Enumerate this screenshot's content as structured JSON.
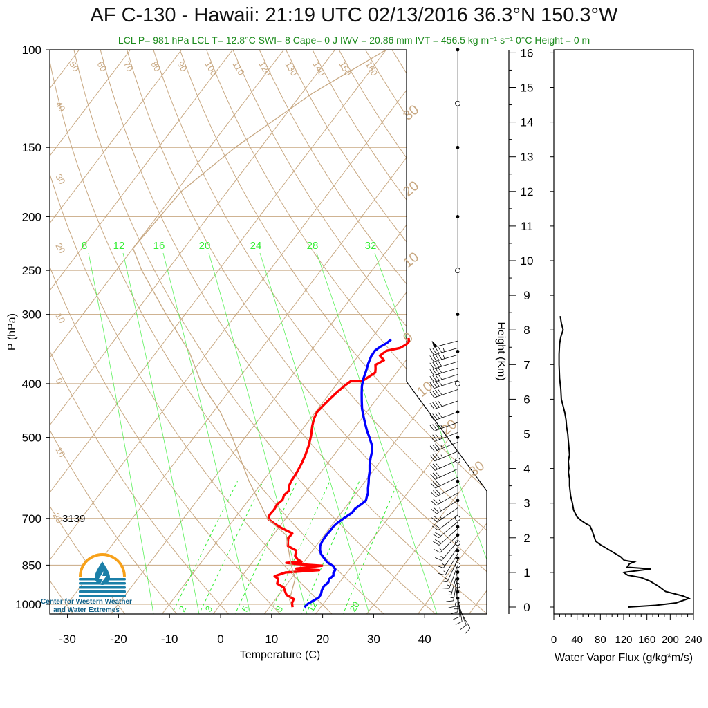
{
  "header": {
    "title": "AF C-130 - Hawaii: 21:19 UTC 02/13/2016  36.3°N 150.3°W",
    "subtitle": "LCL P= 981 hPa  LCL T= 12.8°C  SWI= 8  Cape= 0 J  IWV = 20.86 mm  IVT = 456.5 kg m⁻¹ s⁻¹  0°C Height = 0 m"
  },
  "logo": {
    "caption_line1": "Center for Western Weather",
    "caption_line2": "and Water Extremes"
  },
  "colors": {
    "temperature": "#ff0000",
    "dewpoint": "#0000ff",
    "isotherm": "#c8a882",
    "mixing_ratio": "#33ee33",
    "logo_orange": "#f7a11a",
    "logo_blue": "#1b7fa8"
  },
  "chart_data": [
    {
      "type": "line",
      "chart_kind": "skew-T log-P sounding",
      "xlabel": "Temperature (C)",
      "ylabel": "P (hPa)",
      "xlim": [
        -35,
        52
      ],
      "ylim": [
        1050,
        100
      ],
      "y_scale": "log",
      "x_ticks": [
        -30,
        -20,
        -10,
        0,
        10,
        20,
        30,
        40
      ],
      "y_ticks": [
        100,
        150,
        200,
        250,
        300,
        400,
        500,
        700,
        850,
        1000
      ],
      "annotation": "3139",
      "mixing_ratio_top_labels": [
        "8",
        "12",
        "16",
        "20",
        "24",
        "28",
        "32"
      ],
      "mixing_ratio_bottom_labels": [
        "2",
        "3",
        "5",
        "8",
        "12",
        "20"
      ],
      "isotherm_edge_labels": [
        "30",
        "20",
        "10",
        "0",
        "10",
        "20",
        "30"
      ],
      "dry_adiabat_labels": [
        "50",
        "60",
        "70",
        "80",
        "90",
        "100",
        "110",
        "120",
        "130",
        "140",
        "150",
        "160",
        "40",
        "30",
        "20",
        "10",
        "0",
        "10",
        "20"
      ],
      "series": [
        {
          "name": "Temperature",
          "points": [
            [
              14.5,
              1012
            ],
            [
              13.8,
              995
            ],
            [
              13.5,
              978
            ],
            [
              11.5,
              962
            ],
            [
              10.7,
              948
            ],
            [
              9.8,
              932
            ],
            [
              8.0,
              918
            ],
            [
              7.5,
              900
            ],
            [
              6.4,
              890
            ],
            [
              8.0,
              876
            ],
            [
              14.2,
              868
            ],
            [
              9.5,
              862
            ],
            [
              14.1,
              852
            ],
            [
              9.0,
              846
            ],
            [
              6.7,
              842
            ],
            [
              9.5,
              838
            ],
            [
              8.4,
              830
            ],
            [
              7.4,
              818
            ],
            [
              6.8,
              800
            ],
            [
              4.5,
              785
            ],
            [
              3.9,
              772
            ],
            [
              3.4,
              760
            ],
            [
              3.5,
              745
            ],
            [
              0.5,
              728
            ],
            [
              -1.5,
              715
            ],
            [
              -3.3,
              702
            ],
            [
              -3.7,
              690
            ],
            [
              -3.6,
              675
            ],
            [
              -3.8,
              660
            ],
            [
              -3.4,
              648
            ],
            [
              -3.8,
              636
            ],
            [
              -3.5,
              624
            ],
            [
              -4.2,
              612
            ],
            [
              -4.5,
              598
            ],
            [
              -4.6,
              585
            ],
            [
              -4.8,
              572
            ],
            [
              -5.1,
              556
            ],
            [
              -5.6,
              538
            ],
            [
              -6.4,
              516
            ],
            [
              -7.4,
              496
            ],
            [
              -8.5,
              478
            ],
            [
              -9.3,
              463
            ],
            [
              -9.7,
              450
            ],
            [
              -9.5,
              440
            ],
            [
              -9.2,
              428
            ],
            [
              -8.8,
              416
            ],
            [
              -8.2,
              403
            ],
            [
              -7.7,
              396
            ],
            [
              -5.5,
              396
            ],
            [
              -4.2,
              382
            ],
            [
              -4.7,
              376
            ],
            [
              -5.3,
              370
            ],
            [
              -4.3,
              363
            ],
            [
              -5.8,
              356
            ],
            [
              -5.2,
              349
            ],
            [
              -3.0,
              345
            ],
            [
              -2.3,
              340
            ],
            [
              -2.2,
              336
            ],
            [
              -2.8,
              331
            ]
          ]
        },
        {
          "name": "Dewpoint",
          "points": [
            [
              16.8,
              1012
            ],
            [
              17.0,
              998
            ],
            [
              17.6,
              985
            ],
            [
              18.2,
              972
            ],
            [
              18.1,
              958
            ],
            [
              17.7,
              943
            ],
            [
              17.5,
              928
            ],
            [
              17.8,
              913
            ],
            [
              17.5,
              900
            ],
            [
              17.8,
              888
            ],
            [
              17.4,
              878
            ],
            [
              17.3,
              866
            ],
            [
              16.3,
              853
            ],
            [
              14.6,
              840
            ],
            [
              13.6,
              828
            ],
            [
              12.2,
              812
            ],
            [
              11.4,
              799
            ],
            [
              10.8,
              785
            ],
            [
              10.5,
              770
            ],
            [
              10.4,
              753
            ],
            [
              10.5,
              738
            ],
            [
              10.5,
              724
            ],
            [
              10.8,
              712
            ],
            [
              11.4,
              698
            ],
            [
              12.1,
              684
            ],
            [
              12.1,
              672
            ],
            [
              12.6,
              661
            ],
            [
              13.0,
              650
            ],
            [
              12.6,
              640
            ],
            [
              12.3,
              630
            ],
            [
              11.6,
              618
            ],
            [
              10.9,
              604
            ],
            [
              10.1,
              590
            ],
            [
              9.4,
              576
            ],
            [
              8.4,
              560
            ],
            [
              7.6,
              545
            ],
            [
              6.9,
              530
            ],
            [
              5.8,
              515
            ],
            [
              4.3,
              500
            ],
            [
              2.8,
              486
            ],
            [
              1.4,
              472
            ],
            [
              0.0,
              458
            ],
            [
              -1.4,
              444
            ],
            [
              -2.6,
              430
            ],
            [
              -3.8,
              416
            ],
            [
              -4.8,
              404
            ],
            [
              -5.6,
              392
            ],
            [
              -6.2,
              380
            ],
            [
              -6.9,
              368
            ],
            [
              -7.4,
              357
            ],
            [
              -7.5,
              349
            ],
            [
              -7.0,
              343
            ],
            [
              -6.3,
              338
            ],
            [
              -6.0,
              333
            ]
          ]
        },
        {
          "name": "Parcel",
          "points": [
            [
              13.8,
              1000
            ],
            [
              12.8,
              981
            ],
            [
              10.8,
              900
            ],
            [
              8.0,
              850
            ],
            [
              2.5,
              750
            ],
            [
              -3.6,
              700
            ],
            [
              -12.7,
              600
            ],
            [
              -22.5,
              500
            ],
            [
              -28.6,
              450
            ],
            [
              -36.5,
              400
            ],
            [
              -43.7,
              350
            ],
            [
              -53.7,
              300
            ],
            [
              -65.0,
              250
            ],
            [
              -70.0,
              228
            ],
            [
              -69.0,
              180
            ],
            [
              -65.0,
              150
            ],
            [
              -58.0,
              120
            ],
            [
              -50.0,
              100
            ]
          ]
        }
      ],
      "wind_profile": {
        "units": "knots",
        "points": [
          [
            1010,
            150,
            12
          ],
          [
            990,
            160,
            12
          ],
          [
            970,
            170,
            11
          ],
          [
            950,
            175,
            12
          ],
          [
            930,
            180,
            13
          ],
          [
            910,
            185,
            12
          ],
          [
            890,
            190,
            13
          ],
          [
            870,
            195,
            14
          ],
          [
            850,
            200,
            15
          ],
          [
            830,
            205,
            15
          ],
          [
            810,
            210,
            16
          ],
          [
            790,
            215,
            15
          ],
          [
            770,
            220,
            16
          ],
          [
            750,
            225,
            17
          ],
          [
            730,
            228,
            18
          ],
          [
            710,
            230,
            20
          ],
          [
            690,
            232,
            22
          ],
          [
            670,
            235,
            24
          ],
          [
            650,
            238,
            25
          ],
          [
            630,
            240,
            26
          ],
          [
            610,
            242,
            28
          ],
          [
            590,
            244,
            30
          ],
          [
            570,
            245,
            31
          ],
          [
            550,
            246,
            32
          ],
          [
            530,
            247,
            33
          ],
          [
            510,
            248,
            35
          ],
          [
            490,
            249,
            36
          ],
          [
            470,
            250,
            37
          ],
          [
            450,
            250,
            38
          ],
          [
            430,
            251,
            39
          ],
          [
            410,
            251,
            40
          ],
          [
            395,
            252,
            40
          ],
          [
            385,
            252,
            41
          ],
          [
            375,
            253,
            42
          ],
          [
            365,
            253,
            42
          ],
          [
            355,
            254,
            43
          ],
          [
            345,
            254,
            44
          ],
          [
            335,
            255,
            45
          ]
        ]
      },
      "height_markers_hpa": [
        1000,
        975,
        950,
        925,
        900,
        875,
        850,
        825,
        800,
        775,
        750,
        725,
        700,
        650,
        600,
        550,
        500,
        450,
        400,
        350,
        300,
        250,
        200,
        150,
        125,
        100
      ]
    },
    {
      "type": "line",
      "title": "",
      "xlabel": "Water Vapor Flux (g/kg*m/s)",
      "ylabel": "Height (Km)",
      "xlim": [
        0,
        240
      ],
      "ylim": [
        -0.3,
        16.4
      ],
      "x_ticks": [
        0,
        40,
        80,
        120,
        160,
        200,
        240
      ],
      "y_ticks": [
        0,
        1,
        2,
        3,
        4,
        5,
        6,
        7,
        8,
        9,
        10,
        11,
        12,
        13,
        14,
        15,
        16
      ],
      "series": [
        {
          "name": "",
          "points": [
            [
              128,
              0.0
            ],
            [
              175,
              0.05
            ],
            [
              210,
              0.12
            ],
            [
              232,
              0.25
            ],
            [
              222,
              0.32
            ],
            [
              192,
              0.45
            ],
            [
              180,
              0.6
            ],
            [
              165,
              0.75
            ],
            [
              150,
              0.85
            ],
            [
              127,
              0.92
            ],
            [
              120,
              1.0
            ],
            [
              167,
              1.1
            ],
            [
              126,
              1.15
            ],
            [
              130,
              1.25
            ],
            [
              138,
              1.3
            ],
            [
              121,
              1.35
            ],
            [
              115,
              1.45
            ],
            [
              105,
              1.55
            ],
            [
              90,
              1.7
            ],
            [
              80,
              1.8
            ],
            [
              72,
              1.9
            ],
            [
              70,
              2.0
            ],
            [
              66,
              2.2
            ],
            [
              62,
              2.35
            ],
            [
              56,
              2.4
            ],
            [
              47,
              2.5
            ],
            [
              40,
              2.6
            ],
            [
              34,
              2.8
            ],
            [
              32,
              3.0
            ],
            [
              29,
              3.2
            ],
            [
              27,
              3.5
            ],
            [
              27,
              3.7
            ],
            [
              25,
              3.9
            ],
            [
              26,
              4.0
            ],
            [
              25,
              4.2
            ],
            [
              27,
              4.4
            ],
            [
              26,
              4.6
            ],
            [
              25,
              4.8
            ],
            [
              24,
              5.0
            ],
            [
              22,
              5.2
            ],
            [
              21,
              5.4
            ],
            [
              19,
              5.6
            ],
            [
              16,
              5.8
            ],
            [
              13,
              6.0
            ],
            [
              12,
              6.3
            ],
            [
              10,
              6.6
            ],
            [
              9,
              7.0
            ],
            [
              9,
              7.3
            ],
            [
              10,
              7.6
            ],
            [
              12,
              7.8
            ],
            [
              16,
              8.0
            ],
            [
              13,
              8.2
            ],
            [
              11,
              8.4
            ]
          ]
        }
      ]
    }
  ]
}
